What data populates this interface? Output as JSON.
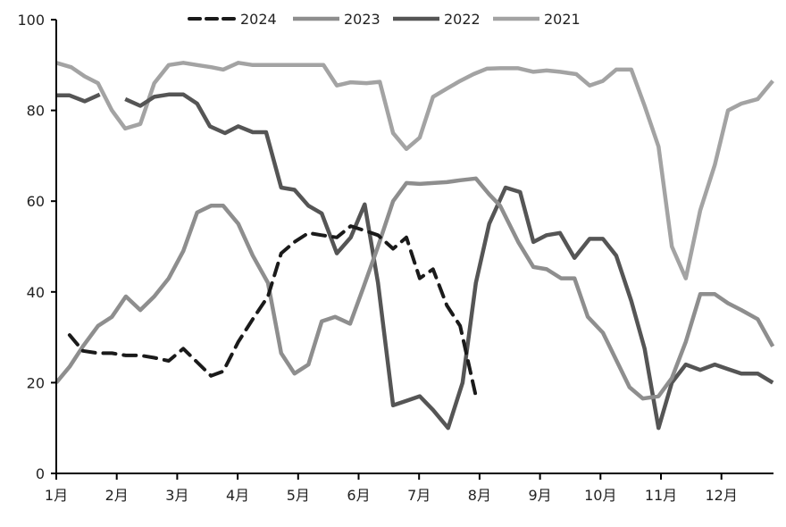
{
  "chart_data": {
    "type": "line",
    "title": "",
    "xlabel": "",
    "ylabel": "",
    "ylim": [
      0,
      100
    ],
    "yticks": [
      "0",
      "20",
      "40",
      "60",
      "80",
      "100"
    ],
    "xlim": [
      1,
      12.85
    ],
    "xticks": [
      "1月",
      "2月",
      "3月",
      "4月",
      "5月",
      "6月",
      "7月",
      "8月",
      "9月",
      "10月",
      "11月",
      "12月"
    ],
    "grid": false,
    "legend_position": "top",
    "series": [
      {
        "name": "2024",
        "color": "#1a1a1a",
        "dash": true,
        "points": [
          [
            1.22,
            30.5
          ],
          [
            1.44,
            27
          ],
          [
            1.69,
            26.5
          ],
          [
            1.92,
            26.5
          ],
          [
            2.15,
            26
          ],
          [
            2.39,
            26
          ],
          [
            2.62,
            25.5
          ],
          [
            2.86,
            24.8
          ],
          [
            3.1,
            27.5
          ],
          [
            3.33,
            24.5
          ],
          [
            3.56,
            21.5
          ],
          [
            3.76,
            22.5
          ],
          [
            4.01,
            29
          ],
          [
            4.25,
            34
          ],
          [
            4.5,
            39
          ],
          [
            4.72,
            48.5
          ],
          [
            4.94,
            51
          ],
          [
            5.17,
            53
          ],
          [
            5.39,
            52.5
          ],
          [
            5.64,
            52
          ],
          [
            5.87,
            54.5
          ],
          [
            6.1,
            53.5
          ],
          [
            6.32,
            52.5
          ],
          [
            6.57,
            49.5
          ],
          [
            6.79,
            52
          ],
          [
            7.01,
            43
          ],
          [
            7.23,
            45
          ],
          [
            7.46,
            37
          ],
          [
            7.68,
            32.5
          ],
          [
            7.94,
            17
          ]
        ]
      },
      {
        "name": "2023",
        "color": "#8e8e8e",
        "dash": false,
        "points": [
          [
            1.0,
            20
          ],
          [
            1.22,
            23.5
          ],
          [
            1.44,
            28
          ],
          [
            1.69,
            32.5
          ],
          [
            1.92,
            34.5
          ],
          [
            2.15,
            39
          ],
          [
            2.39,
            36
          ],
          [
            2.62,
            39
          ],
          [
            2.86,
            43
          ],
          [
            3.1,
            49
          ],
          [
            3.33,
            57.5
          ],
          [
            3.56,
            59
          ],
          [
            3.76,
            59
          ],
          [
            4.01,
            55
          ],
          [
            4.25,
            48
          ],
          [
            4.5,
            42
          ],
          [
            4.72,
            26.5
          ],
          [
            4.94,
            22
          ],
          [
            5.17,
            24
          ],
          [
            5.39,
            33.5
          ],
          [
            5.61,
            34.5
          ],
          [
            5.86,
            33
          ],
          [
            6.08,
            41
          ],
          [
            6.32,
            50
          ],
          [
            6.57,
            60
          ],
          [
            6.79,
            64
          ],
          [
            7.01,
            63.8
          ],
          [
            7.23,
            64
          ],
          [
            7.46,
            64.2
          ],
          [
            7.68,
            64.6
          ],
          [
            7.94,
            65
          ],
          [
            8.16,
            61.5
          ],
          [
            8.34,
            59
          ],
          [
            8.64,
            51
          ],
          [
            8.89,
            45.5
          ],
          [
            9.11,
            45
          ],
          [
            9.35,
            43
          ],
          [
            9.57,
            43
          ],
          [
            9.79,
            34.5
          ],
          [
            10.04,
            31
          ],
          [
            10.26,
            25
          ],
          [
            10.48,
            19
          ],
          [
            10.7,
            16.5
          ],
          [
            10.96,
            17
          ],
          [
            11.18,
            21
          ],
          [
            11.41,
            29
          ],
          [
            11.65,
            39.5
          ],
          [
            11.89,
            39.5
          ],
          [
            12.11,
            37.5
          ],
          [
            12.33,
            36
          ],
          [
            12.6,
            34
          ],
          [
            12.85,
            28
          ]
        ]
      },
      {
        "name": "2022",
        "color": "#555555",
        "dash": false,
        "points": [
          [
            1.0,
            83.3
          ],
          [
            1.22,
            83.3
          ],
          [
            1.47,
            82
          ],
          [
            1.72,
            83.5
          ],
          null,
          [
            2.14,
            82.5
          ],
          [
            2.39,
            81
          ],
          [
            2.62,
            83
          ],
          [
            2.86,
            83.5
          ],
          [
            3.1,
            83.5
          ],
          [
            3.33,
            81.5
          ],
          [
            3.54,
            76.5
          ],
          [
            3.79,
            75
          ],
          [
            4.01,
            76.5
          ],
          [
            4.25,
            75.2
          ],
          [
            4.47,
            75.2
          ],
          [
            4.72,
            63
          ],
          [
            4.94,
            62.5
          ],
          [
            5.17,
            59
          ],
          [
            5.39,
            57.3
          ],
          [
            5.64,
            48.5
          ],
          [
            5.87,
            52
          ],
          [
            6.1,
            59.3
          ],
          [
            6.32,
            42
          ],
          [
            6.57,
            15
          ],
          [
            6.79,
            16
          ],
          [
            7.01,
            17
          ],
          [
            7.23,
            14
          ],
          [
            7.48,
            10
          ],
          [
            7.72,
            20
          ],
          [
            7.94,
            42
          ],
          [
            8.16,
            55
          ],
          [
            8.43,
            63
          ],
          [
            8.67,
            62
          ],
          [
            8.89,
            51
          ],
          [
            9.11,
            52.5
          ],
          [
            9.33,
            53
          ],
          [
            9.57,
            47.5
          ],
          [
            9.82,
            51.7
          ],
          [
            10.04,
            51.7
          ],
          [
            10.26,
            48
          ],
          [
            10.51,
            38
          ],
          [
            10.73,
            27.5
          ],
          [
            10.96,
            10
          ],
          [
            11.18,
            20
          ],
          [
            11.41,
            24
          ],
          [
            11.65,
            22.8
          ],
          [
            11.89,
            24
          ],
          [
            12.11,
            23
          ],
          [
            12.33,
            22
          ],
          [
            12.6,
            22
          ],
          [
            12.85,
            20
          ]
        ]
      },
      {
        "name": "2021",
        "color": "#a3a3a3",
        "dash": false,
        "points": [
          [
            1.0,
            90.5
          ],
          [
            1.25,
            89.5
          ],
          [
            1.47,
            87.5
          ],
          [
            1.69,
            86
          ],
          [
            1.92,
            80
          ],
          [
            2.14,
            76
          ],
          [
            2.39,
            77
          ],
          [
            2.62,
            86
          ],
          [
            2.86,
            90
          ],
          [
            3.1,
            90.5
          ],
          [
            3.33,
            90
          ],
          [
            3.57,
            89.5
          ],
          [
            3.76,
            89
          ],
          [
            4.01,
            90.5
          ],
          [
            4.25,
            90
          ],
          [
            4.5,
            90
          ],
          [
            4.94,
            90
          ],
          [
            5.42,
            90
          ],
          [
            5.64,
            85.5
          ],
          [
            5.87,
            86.2
          ],
          [
            6.13,
            86
          ],
          [
            6.35,
            86.3
          ],
          [
            6.57,
            75
          ],
          [
            6.79,
            71.5
          ],
          [
            7.01,
            74
          ],
          [
            7.23,
            83
          ],
          [
            7.46,
            84.8
          ],
          [
            7.68,
            86.5
          ],
          [
            7.9,
            88
          ],
          [
            8.12,
            89.2
          ],
          [
            8.34,
            89.3
          ],
          [
            8.64,
            89.3
          ],
          [
            8.89,
            88.5
          ],
          [
            9.11,
            88.8
          ],
          [
            9.33,
            88.5
          ],
          [
            9.6,
            88
          ],
          [
            9.82,
            85.5
          ],
          [
            10.04,
            86.5
          ],
          [
            10.26,
            89
          ],
          [
            10.51,
            89
          ],
          [
            10.73,
            81
          ],
          [
            10.96,
            72
          ],
          [
            11.18,
            50
          ],
          [
            11.41,
            43
          ],
          [
            11.65,
            58
          ],
          [
            11.89,
            68
          ],
          [
            12.11,
            80
          ],
          [
            12.33,
            81.5
          ],
          [
            12.6,
            82.5
          ],
          [
            12.85,
            86.5
          ]
        ]
      }
    ]
  }
}
